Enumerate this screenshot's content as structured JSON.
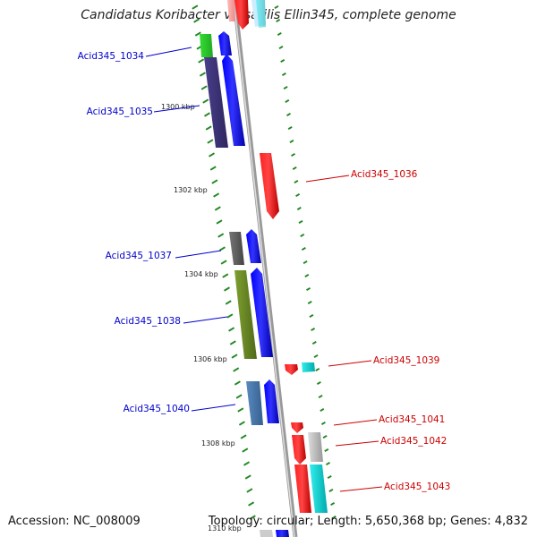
{
  "title": "Candidatus Koribacter versatilis Ellin345, complete genome",
  "footer": {
    "accession": "Accession: NC_008009",
    "summary": "Topology: circular; Length: 5,650,368 bp; Genes: 4,832"
  },
  "ticks": [
    "1300 kbp",
    "1302 kbp",
    "1304 kbp",
    "1306 kbp",
    "1308 kbp",
    "1310 kbp"
  ],
  "genes": [
    {
      "id": "Acid345_1034",
      "strand": "-"
    },
    {
      "id": "Acid345_1035",
      "strand": "-"
    },
    {
      "id": "Acid345_1036",
      "strand": "+"
    },
    {
      "id": "Acid345_1037",
      "strand": "-"
    },
    {
      "id": "Acid345_1038",
      "strand": "-"
    },
    {
      "id": "Acid345_1039",
      "strand": "+"
    },
    {
      "id": "Acid345_1040",
      "strand": "-"
    },
    {
      "id": "Acid345_1041",
      "strand": "+"
    },
    {
      "id": "Acid345_1042",
      "strand": "+"
    },
    {
      "id": "Acid345_1043",
      "strand": "+"
    }
  ],
  "colors": {
    "forward_cds": "#ff0000",
    "reverse_cds": "#0000ff",
    "backbone": "#888888",
    "gc_dots": "#228822",
    "minus_label": "#0000cc",
    "plus_label": "#cc0000"
  }
}
